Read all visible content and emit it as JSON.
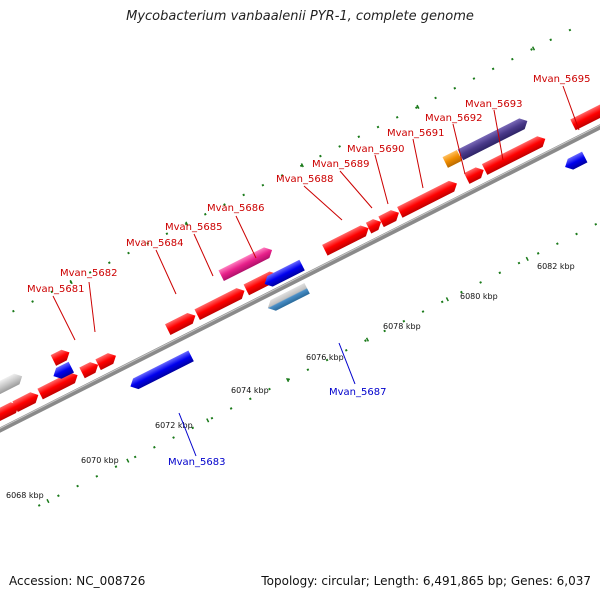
{
  "title": "Mycobacterium vanbaalenii PYR-1, complete genome",
  "footer": {
    "accession": "Accession: NC_008726",
    "summary": "Topology: circular; Length: 6,491,865 bp; Genes: 6,037"
  },
  "colors": {
    "forward_gene": "#ff0000",
    "reverse_gene": "#0000ee",
    "magenta_gene": "#e8208a",
    "purple_gene": "#4a3a8a",
    "orange_gene": "#f08c00",
    "gray_gene": "#bdbdbd",
    "rna_gene": "#4a8fc8",
    "forward_label": "#cc0000",
    "reverse_label": "#0000cc",
    "backbone": "#8a8a8a",
    "tick": "#1a7a1a"
  },
  "scale": {
    "ticks_kbp": [
      "6068 kbp",
      "6070 kbp",
      "6072 kbp",
      "6074 kbp",
      "6076 kbp",
      "6078 kbp",
      "6080 kbp",
      "6082 kbp"
    ]
  },
  "genes": {
    "forward": [
      {
        "label": "Mvan_5681"
      },
      {
        "label": "Mvan_5682"
      },
      {
        "label": "Mvan_5684"
      },
      {
        "label": "Mvan_5685"
      },
      {
        "label": "Mvan_5686"
      },
      {
        "label": "Mvan_5688"
      },
      {
        "label": "Mvan_5689"
      },
      {
        "label": "Mvan_5690"
      },
      {
        "label": "Mvan_5691"
      },
      {
        "label": "Mvan_5692"
      },
      {
        "label": "Mvan_5693"
      },
      {
        "label": "Mvan_5695"
      }
    ],
    "reverse": [
      {
        "label": "Mvan_5683"
      },
      {
        "label": "Mvan_5687"
      }
    ]
  }
}
